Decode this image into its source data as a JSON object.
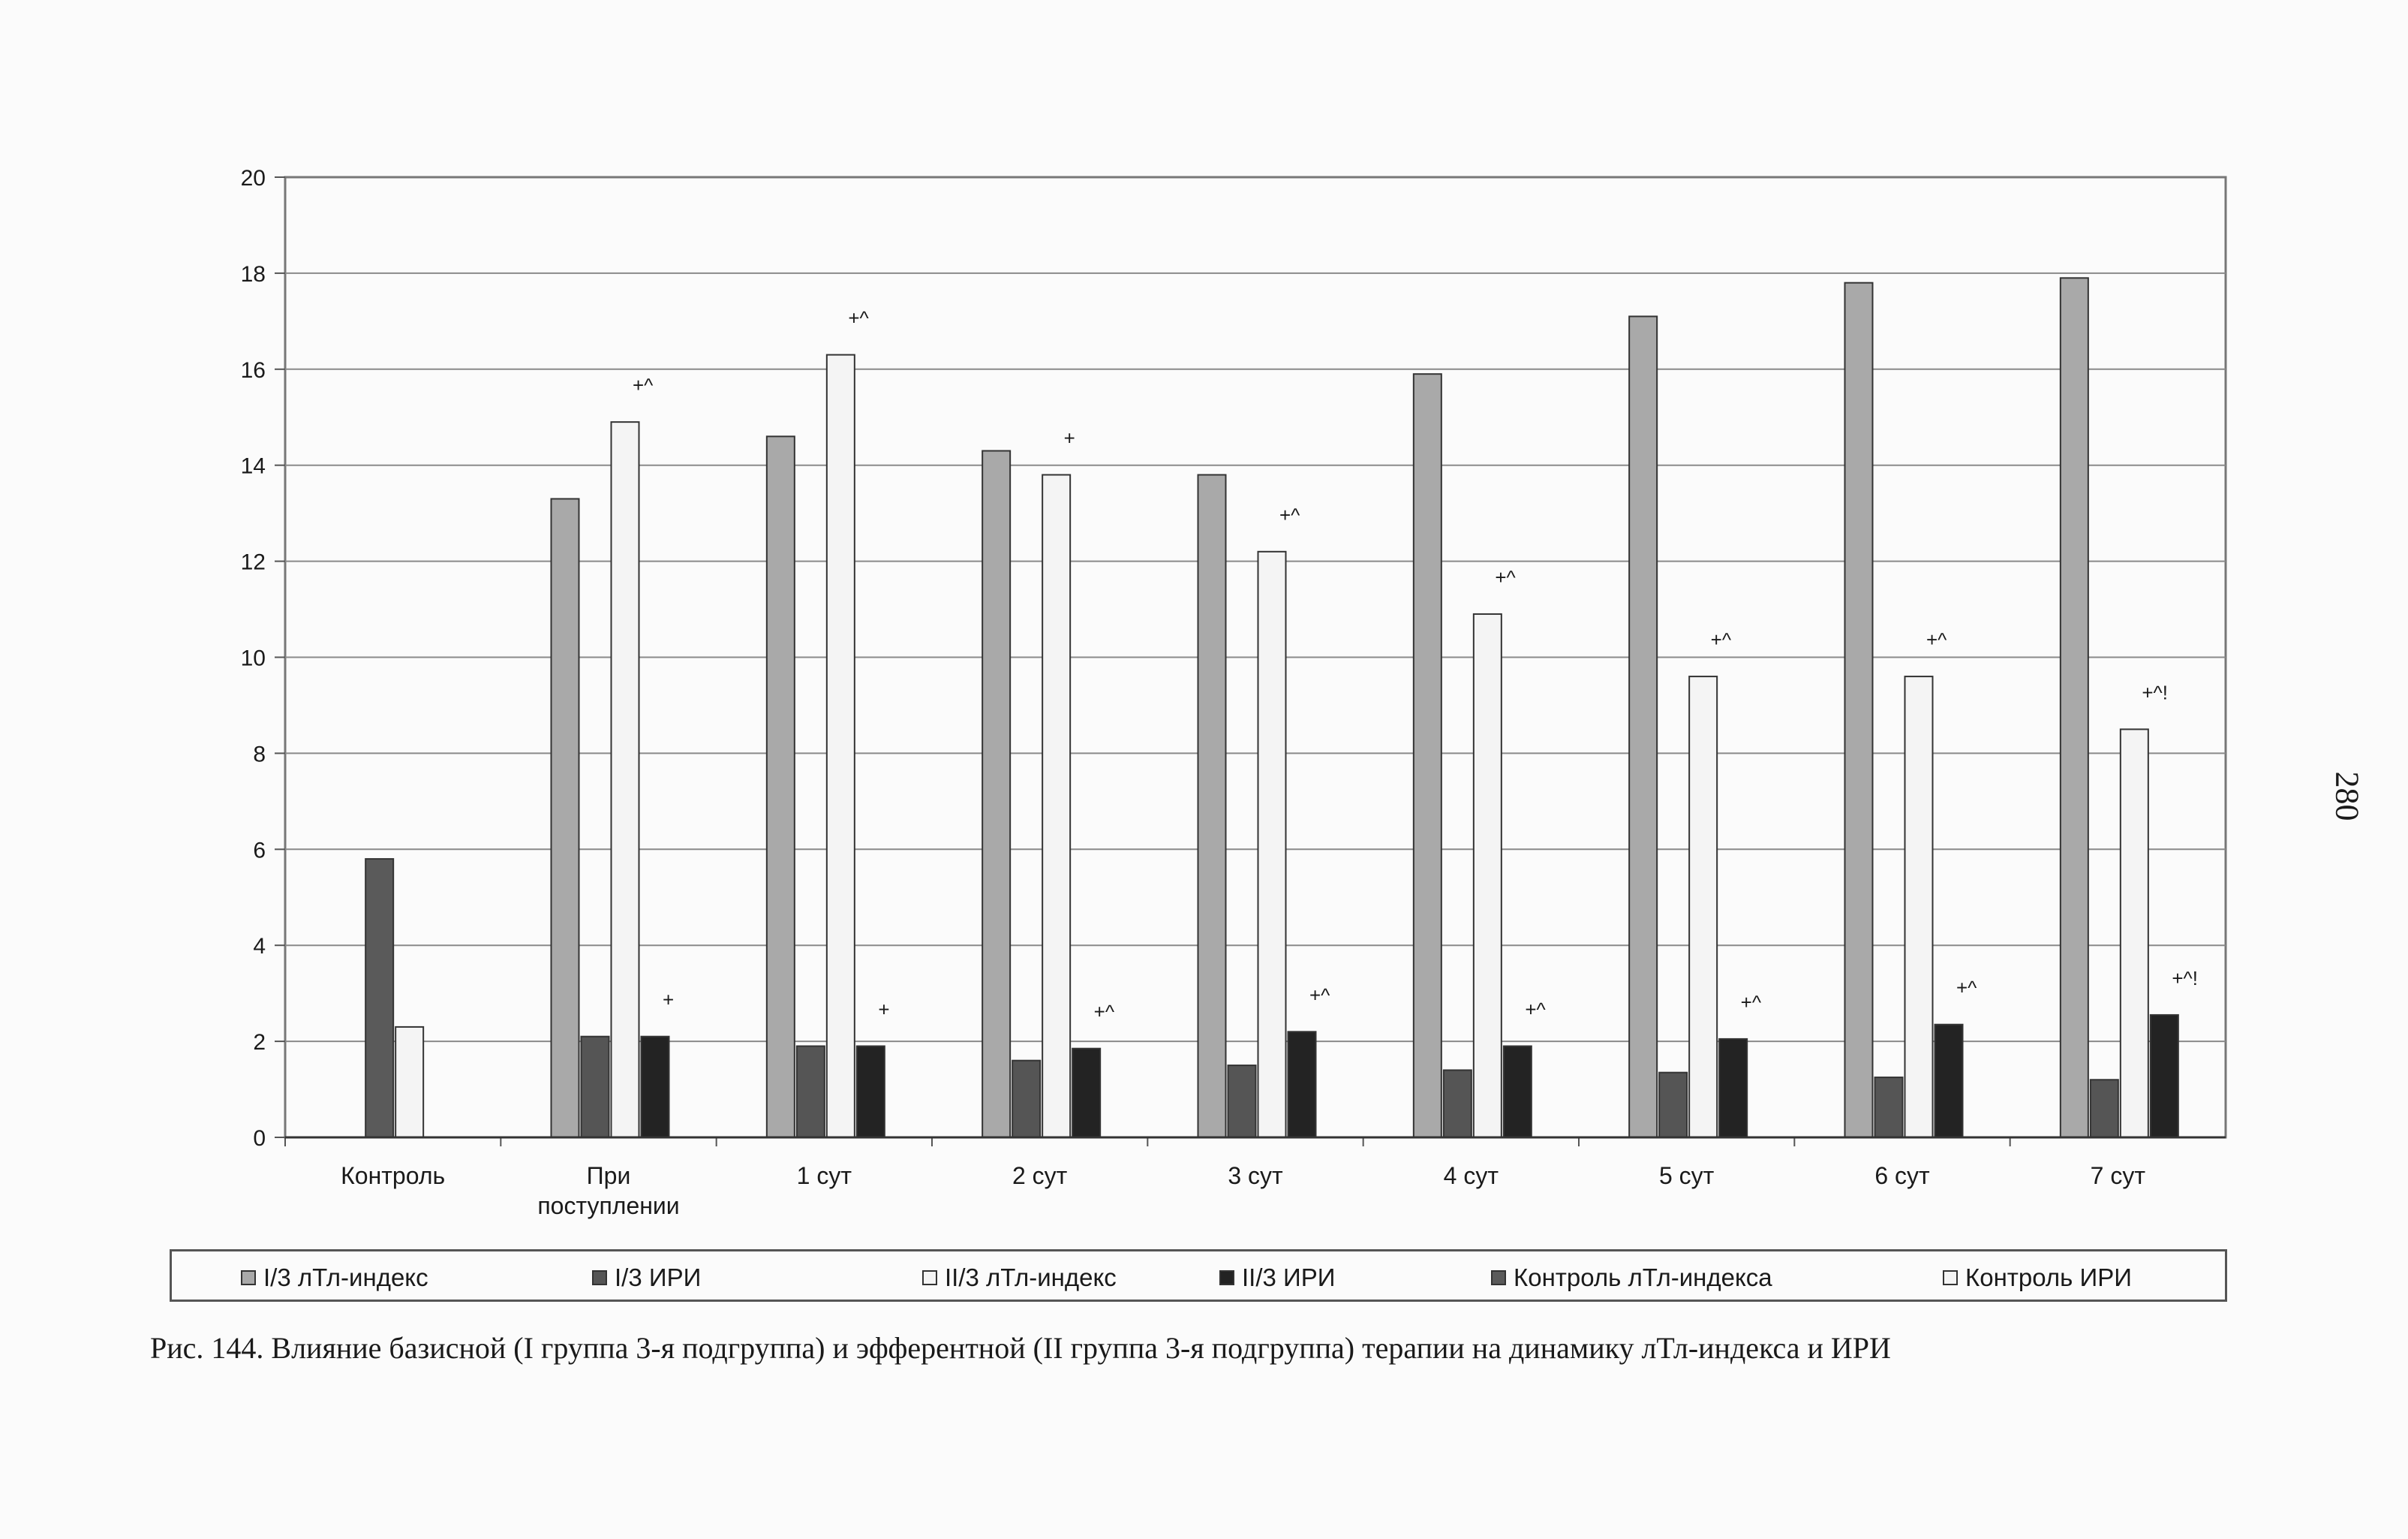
{
  "page_number": "280",
  "caption": "Рис. 144. Влияние базисной (I группа 3-я подгруппа) и эфферентной (II группа 3-я подгруппа) терапии на динамику лТл-индекса и ИРИ",
  "chart_data": {
    "type": "bar",
    "ylim": [
      0,
      20
    ],
    "yticks": [
      0,
      2,
      4,
      6,
      8,
      10,
      12,
      14,
      16,
      18,
      20
    ],
    "grid": true,
    "legend_position": "bottom",
    "categories": [
      [
        "Контроль"
      ],
      [
        "При",
        "поступлении"
      ],
      [
        "1 сут"
      ],
      [
        "2 сут"
      ],
      [
        "3 сут"
      ],
      [
        "4 сут"
      ],
      [
        "5 сут"
      ],
      [
        "6 сут"
      ],
      [
        "7 сут"
      ]
    ],
    "series": [
      {
        "name": "I/3 лТл-индекс",
        "color": "#a9a9a9",
        "values": [
          null,
          13.3,
          14.6,
          14.3,
          13.8,
          15.9,
          17.1,
          17.8,
          17.9
        ]
      },
      {
        "name": "I/3 ИРИ",
        "color": "#555555",
        "values": [
          null,
          2.1,
          1.9,
          1.6,
          1.5,
          1.4,
          1.35,
          1.25,
          1.2
        ]
      },
      {
        "name": "II/3 лТл-индекс",
        "color": "#f4f4f4",
        "values": [
          null,
          14.9,
          16.3,
          13.8,
          12.2,
          10.9,
          9.6,
          9.6,
          8.5
        ]
      },
      {
        "name": "II/3 ИРИ",
        "color": "#232323",
        "values": [
          null,
          2.1,
          1.9,
          1.85,
          2.2,
          1.9,
          2.05,
          2.35,
          2.55
        ]
      },
      {
        "name": "Контроль лТл-индекса",
        "color": "#5a5a5a",
        "values": [
          5.8,
          null,
          null,
          null,
          null,
          null,
          null,
          null,
          null
        ]
      },
      {
        "name": "Контроль ИРИ",
        "color": "#f4f4f4",
        "values": [
          2.3,
          null,
          null,
          null,
          null,
          null,
          null,
          null,
          null
        ]
      }
    ],
    "annotations": [
      {
        "category": 1,
        "series": 2,
        "text": "+^"
      },
      {
        "category": 2,
        "series": 2,
        "text": "+^"
      },
      {
        "category": 3,
        "series": 2,
        "text": "+"
      },
      {
        "category": 4,
        "series": 2,
        "text": "+^"
      },
      {
        "category": 5,
        "series": 2,
        "text": "+^"
      },
      {
        "category": 6,
        "series": 2,
        "text": "+^"
      },
      {
        "category": 7,
        "series": 2,
        "text": "+^"
      },
      {
        "category": 8,
        "series": 2,
        "text": "+^!"
      },
      {
        "category": 1,
        "series": 3,
        "text": "+"
      },
      {
        "category": 2,
        "series": 3,
        "text": "+"
      },
      {
        "category": 3,
        "series": 3,
        "text": "+^"
      },
      {
        "category": 4,
        "series": 3,
        "text": "+^"
      },
      {
        "category": 5,
        "series": 3,
        "text": "+^"
      },
      {
        "category": 6,
        "series": 3,
        "text": "+^"
      },
      {
        "category": 7,
        "series": 3,
        "text": "+^"
      },
      {
        "category": 8,
        "series": 3,
        "text": "+^!"
      }
    ]
  }
}
